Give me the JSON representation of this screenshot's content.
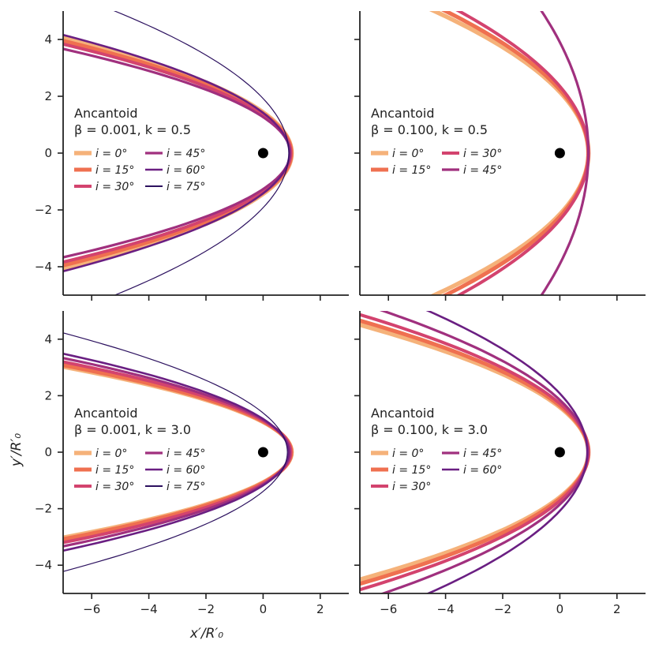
{
  "figure": {
    "xlabel": "x′/R′₀",
    "ylabel": "y′/R′₀"
  },
  "chart_data": [
    {
      "type": "line",
      "panel": "top-left",
      "legend_title": [
        "Ancantoid",
        "β = 0.001, k = 0.5"
      ],
      "legend_placement": "center-left",
      "xlim": [
        -7,
        3
      ],
      "ylim": [
        -5,
        5
      ],
      "xticks": [
        -6,
        -4,
        -2,
        0,
        2
      ],
      "yticks": [
        -4,
        -2,
        0,
        2,
        4
      ],
      "show_x_tick_labels": false,
      "show_y_tick_labels": true,
      "star_marker": [
        0,
        0
      ],
      "series": [
        {
          "name": "i = 0°",
          "color": "#f5b27a",
          "width": 5.5,
          "x_at_y0": 1.0,
          "x_at_y4": -6.75,
          "asymptote_deg": 0
        },
        {
          "name": "i = 15°",
          "color": "#ef7050",
          "width": 5,
          "x_at_y0": 0.99,
          "x_at_y4": -7.2,
          "asymptote_deg": 0
        },
        {
          "name": "i = 30°",
          "color": "#d3436e",
          "width": 4,
          "x_at_y0": 0.97,
          "x_at_y4": -7.7,
          "asymptote_deg": 0
        },
        {
          "name": "i = 45°",
          "color": "#a0307e",
          "width": 3.2,
          "x_at_y0": 0.95,
          "x_at_y4": -8.5,
          "asymptote_deg": 0
        },
        {
          "name": "i = 60°",
          "color": "#6a1f82",
          "width": 2.6,
          "x_at_y0": 0.92,
          "x_at_y4": -6.4,
          "asymptote_deg": 0
        },
        {
          "name": "i = 75°",
          "color": "#2c115f",
          "width": 1.2,
          "x_at_y0": 0.9,
          "x_at_y4": -3.0,
          "asymptote_deg": 0
        }
      ]
    },
    {
      "type": "line",
      "panel": "top-right",
      "legend_title": [
        "Ancantoid",
        "β = 0.100, k = 0.5"
      ],
      "legend_placement": "center-left",
      "xlim": [
        -7,
        3
      ],
      "ylim": [
        -5,
        5
      ],
      "xticks": [
        -6,
        -4,
        -2,
        0,
        2
      ],
      "yticks": [
        -4,
        -2,
        0,
        2,
        4
      ],
      "show_x_tick_labels": false,
      "show_y_tick_labels": false,
      "star_marker": [
        0,
        0
      ],
      "series": [
        {
          "name": "i = 0°",
          "color": "#f5b27a",
          "width": 5.5,
          "x_at_y0": 1.0,
          "x_at_y4": -2.45
        },
        {
          "name": "i = 15°",
          "color": "#ef7050",
          "width": 5,
          "x_at_y0": 1.0,
          "x_at_y4": -2.2
        },
        {
          "name": "i = 30°",
          "color": "#d3436e",
          "width": 4,
          "x_at_y0": 1.0,
          "x_at_y4": -1.9
        },
        {
          "name": "i = 45°",
          "color": "#a0307e",
          "width": 3.2,
          "x_at_y0": 1.0,
          "x_at_y4": -0.05
        }
      ]
    },
    {
      "type": "line",
      "panel": "bottom-left",
      "legend_title": [
        "Ancantoid",
        "β = 0.001, k = 3.0"
      ],
      "legend_placement": "center-left",
      "xlim": [
        -7,
        3
      ],
      "ylim": [
        -5,
        5
      ],
      "xticks": [
        -6,
        -4,
        -2,
        0,
        2
      ],
      "yticks": [
        -4,
        -2,
        0,
        2,
        4
      ],
      "show_x_tick_labels": true,
      "show_y_tick_labels": true,
      "star_marker": [
        0,
        0
      ],
      "series": [
        {
          "name": "i = 0°",
          "color": "#f5b27a",
          "width": 5.5,
          "x_at_y0": 1.0,
          "x_at_y4": -13.0
        },
        {
          "name": "i = 15°",
          "color": "#ef7050",
          "width": 5,
          "x_at_y0": 0.99,
          "x_at_y4": -12.5
        },
        {
          "name": "i = 30°",
          "color": "#d3436e",
          "width": 4,
          "x_at_y0": 0.97,
          "x_at_y4": -11.5
        },
        {
          "name": "i = 45°",
          "color": "#a0307e",
          "width": 3.2,
          "x_at_y0": 0.94,
          "x_at_y4": -10.5
        },
        {
          "name": "i = 60°",
          "color": "#6a1f82",
          "width": 2.6,
          "x_at_y0": 0.9,
          "x_at_y4": -9.5
        },
        {
          "name": "i = 75°",
          "color": "#2c115f",
          "width": 1.2,
          "x_at_y0": 0.85,
          "x_at_y4": -6.2
        }
      ]
    },
    {
      "type": "line",
      "panel": "bottom-right",
      "legend_title": [
        "Ancantoid",
        "β = 0.100, k = 3.0"
      ],
      "legend_placement": "center-left",
      "xlim": [
        -7,
        3
      ],
      "ylim": [
        -5,
        5
      ],
      "xticks": [
        -6,
        -4,
        -2,
        0,
        2
      ],
      "yticks": [
        -4,
        -2,
        0,
        2,
        4
      ],
      "show_x_tick_labels": true,
      "show_y_tick_labels": false,
      "star_marker": [
        0,
        0
      ],
      "series": [
        {
          "name": "i = 0°",
          "color": "#f5b27a",
          "width": 5.5,
          "x_at_y0": 1.0,
          "x_at_y4": -5.3
        },
        {
          "name": "i = 15°",
          "color": "#ef7050",
          "width": 5,
          "x_at_y0": 1.0,
          "x_at_y4": -4.9
        },
        {
          "name": "i = 30°",
          "color": "#d3436e",
          "width": 4,
          "x_at_y0": 1.0,
          "x_at_y4": -4.4
        },
        {
          "name": "i = 45°",
          "color": "#a0307e",
          "width": 3.2,
          "x_at_y0": 0.98,
          "x_at_y4": -3.6
        },
        {
          "name": "i = 60°",
          "color": "#6a1f82",
          "width": 2.6,
          "x_at_y0": 0.96,
          "x_at_y4": -2.6
        }
      ]
    }
  ]
}
